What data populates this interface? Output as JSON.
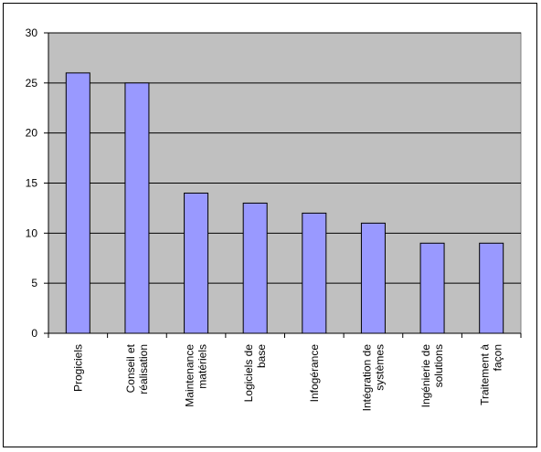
{
  "chart_data": {
    "type": "bar",
    "categories": [
      [
        "Progiciels"
      ],
      [
        "Conseil et",
        "réalisation"
      ],
      [
        "Maintenance",
        "matériels"
      ],
      [
        "Logiciels de",
        "base"
      ],
      [
        "Infogérance"
      ],
      [
        "Intégration de",
        "systèmes"
      ],
      [
        "Ingénierie de",
        "solutions"
      ],
      [
        "Traitement à",
        "façon"
      ]
    ],
    "values": [
      26,
      25,
      14,
      13,
      12,
      11,
      9,
      9
    ],
    "color": "#9999ff",
    "ylim": [
      0,
      30
    ],
    "yticks": [
      0,
      5,
      10,
      15,
      20,
      25,
      30
    ],
    "grid": true
  }
}
